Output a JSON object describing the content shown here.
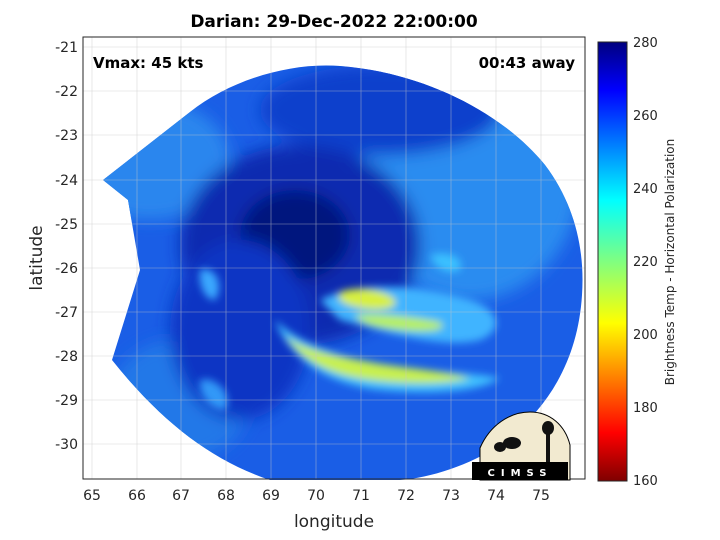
{
  "title": "Darian: 29-Dec-2022 22:00:00",
  "annotations": {
    "vmax": "Vmax: 45 kts",
    "time_away": "00:43 away"
  },
  "logo_text": "CIMSS",
  "chart_data": {
    "type": "heatmap",
    "title": "Darian: 29-Dec-2022 22:00:00",
    "xlabel": "longitude",
    "ylabel": "latitude",
    "xlim": [
      64.8,
      75.9
    ],
    "ylim": [
      -30.8,
      -20.8
    ],
    "xticks": [
      "65",
      "66",
      "67",
      "68",
      "69",
      "70",
      "71",
      "72",
      "73",
      "74",
      "75"
    ],
    "yticks": [
      "-21",
      "-22",
      "-23",
      "-24",
      "-25",
      "-26",
      "-27",
      "-28",
      "-29",
      "-30"
    ],
    "grid": true,
    "colorbar": {
      "label": "Brightness Temp - Horizontal Polarization",
      "range": [
        160,
        280
      ],
      "ticks": [
        "280",
        "260",
        "240",
        "220",
        "200",
        "180",
        "160"
      ],
      "colormap": "jet"
    },
    "storm_center_approx": {
      "lon": 69.8,
      "lat": -25.6
    },
    "coldest_band_approx_tb": 210
  },
  "colors": {
    "low_tb": "#7f0000",
    "mid_tb": "#f0f000",
    "high_tb": "#00007f"
  }
}
